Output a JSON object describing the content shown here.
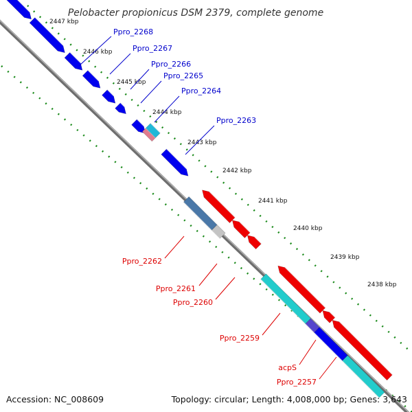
{
  "title": "Pelobacter propionicus DSM 2379, complete genome",
  "footer": {
    "accession": "Accession: NC_008609",
    "topology": "Topology: circular; Length: 4,008,000 bp; Genes: 3,643"
  },
  "colors": {
    "backbone": "#888888",
    "forward_cds": "#0000ee",
    "reverse_cds": "#ee0000",
    "label_forward": "#0000cc",
    "label_reverse": "#dd0000",
    "tick": "#1a8a1a"
  },
  "scale": {
    "unit": "kbp",
    "ticks": [
      {
        "label": "2447 kbp"
      },
      {
        "label": "2446 kbp"
      },
      {
        "label": "2445 kbp"
      },
      {
        "label": "2444 kbp"
      },
      {
        "label": "2443 kbp"
      },
      {
        "label": "2442 kbp"
      },
      {
        "label": "2441 kbp"
      },
      {
        "label": "2440 kbp"
      },
      {
        "label": "2439 kbp"
      },
      {
        "label": "2438 kbp"
      }
    ]
  },
  "genes": [
    {
      "name": "Ppro_2268",
      "strand": "forward",
      "color": "#0000ee"
    },
    {
      "name": "Ppro_2267",
      "strand": "forward",
      "color": "#0000ee"
    },
    {
      "name": "Ppro_2266",
      "strand": "forward",
      "color": "#0000ee"
    },
    {
      "name": "Ppro_2265",
      "strand": "forward",
      "color": "#0000ee"
    },
    {
      "name": "Ppro_2264",
      "strand": "forward",
      "color": "#0000ee"
    },
    {
      "name": "Ppro_2263",
      "strand": "forward",
      "color": "#0000ee"
    },
    {
      "name": "Ppro_2262",
      "strand": "reverse",
      "color": "#ee0000"
    },
    {
      "name": "Ppro_2261",
      "strand": "reverse",
      "color": "#ee0000"
    },
    {
      "name": "Ppro_2260",
      "strand": "reverse",
      "color": "#ee0000"
    },
    {
      "name": "Ppro_2259",
      "strand": "reverse",
      "color": "#ee0000"
    },
    {
      "name": "acpS",
      "strand": "reverse",
      "color": "#ee0000"
    },
    {
      "name": "Ppro_2257",
      "strand": "reverse",
      "color": "#ee0000"
    }
  ]
}
